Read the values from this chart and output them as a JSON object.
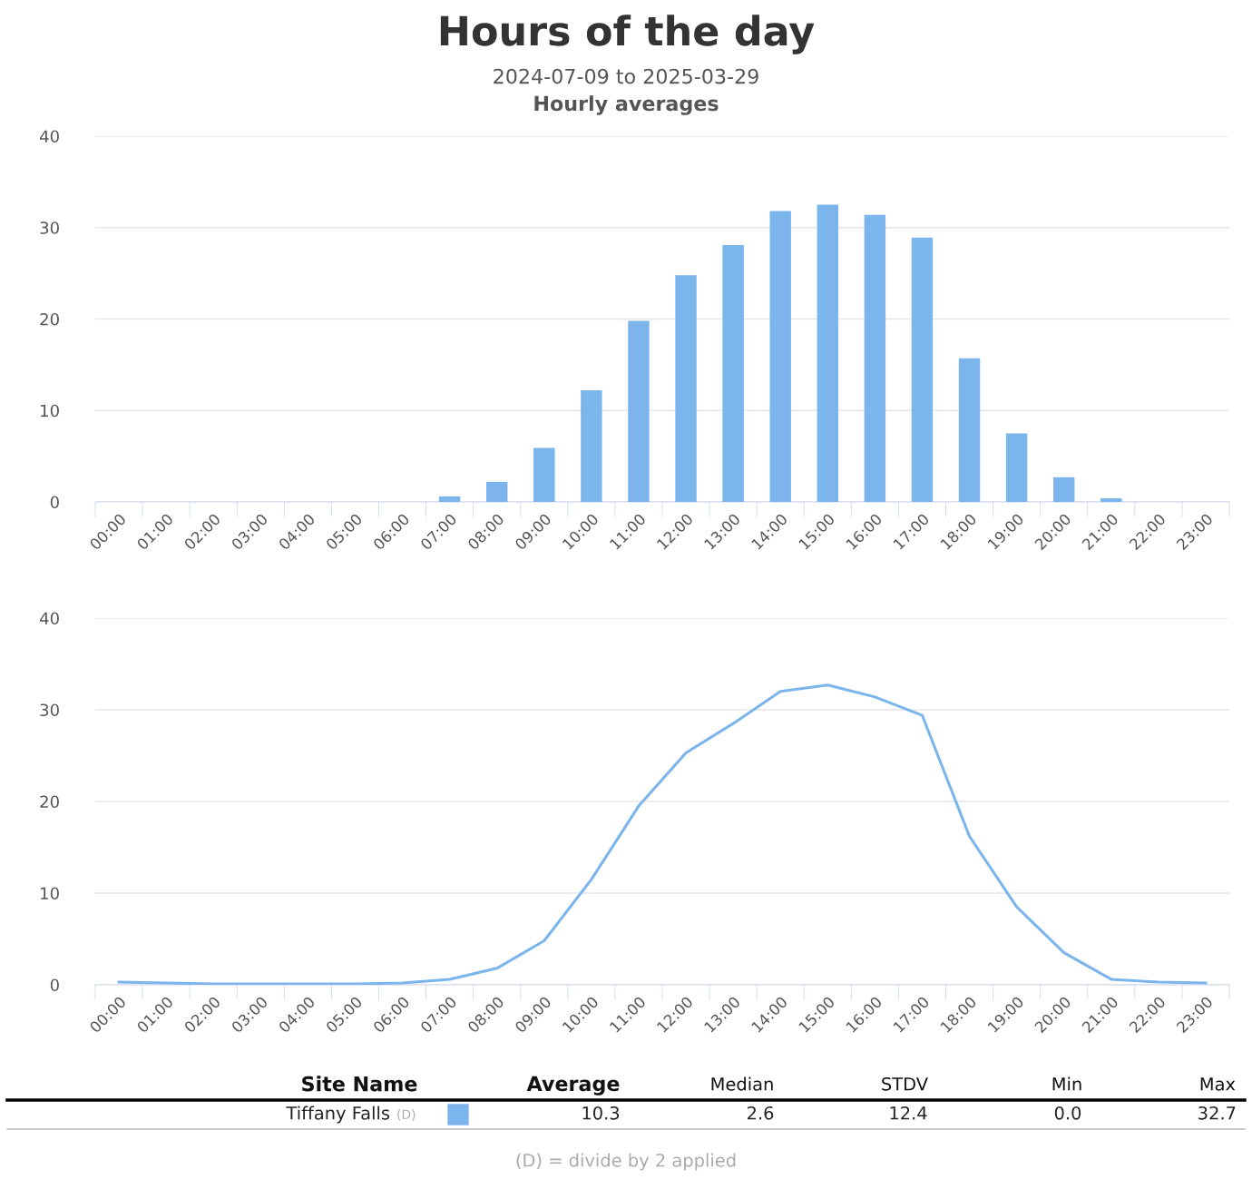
{
  "chart_data": [
    {
      "type": "bar",
      "title": "Hours of the day",
      "subtitle": "2024-07-09 to 2025-03-29",
      "annotations": [
        "Hourly averages"
      ],
      "categories": [
        "00:00",
        "01:00",
        "02:00",
        "03:00",
        "04:00",
        "05:00",
        "06:00",
        "07:00",
        "08:00",
        "09:00",
        "10:00",
        "11:00",
        "12:00",
        "13:00",
        "14:00",
        "15:00",
        "16:00",
        "17:00",
        "18:00",
        "19:00",
        "20:00",
        "21:00",
        "22:00",
        "23:00"
      ],
      "values": [
        0,
        0,
        0,
        0,
        0,
        0,
        0,
        0.6,
        2.2,
        5.9,
        12.2,
        19.8,
        24.8,
        28.1,
        31.8,
        32.5,
        31.4,
        28.9,
        15.7,
        7.5,
        2.7,
        0.4,
        0,
        0
      ],
      "color": "#7cb5ec",
      "ylim": [
        0,
        40
      ],
      "yticks": [
        0,
        10,
        20,
        30,
        40
      ],
      "grid": "y",
      "legend": false
    },
    {
      "type": "line",
      "categories": [
        "00:00",
        "01:00",
        "02:00",
        "03:00",
        "04:00",
        "05:00",
        "06:00",
        "07:00",
        "08:00",
        "09:00",
        "10:00",
        "11:00",
        "12:00",
        "13:00",
        "14:00",
        "15:00",
        "16:00",
        "17:00",
        "18:00",
        "19:00",
        "20:00",
        "21:00",
        "22:00",
        "23:00"
      ],
      "values": [
        0.3,
        0.2,
        0.1,
        0.1,
        0.1,
        0.1,
        0.2,
        0.6,
        1.8,
        4.8,
        11.5,
        19.5,
        25.3,
        28.5,
        32.0,
        32.7,
        31.4,
        29.4,
        16.2,
        8.5,
        3.5,
        0.6,
        0.3,
        0.2
      ],
      "color": "#7cb5ec",
      "ylim": [
        0,
        40
      ],
      "yticks": [
        0,
        10,
        20,
        30,
        40
      ],
      "grid": "y",
      "legend": false,
      "marker": "none",
      "line_style": "solid"
    },
    {
      "type": "other",
      "color": "#7cb5ec",
      "annotations": [
        "Site Name",
        "Average",
        "Median",
        "STDV",
        "Min",
        "Max",
        "Tiffany Falls",
        "(D)",
        "10.3",
        "2.6",
        "12.4",
        "0.0",
        "32.7",
        "(D) = divide by 2 applied"
      ]
    }
  ]
}
